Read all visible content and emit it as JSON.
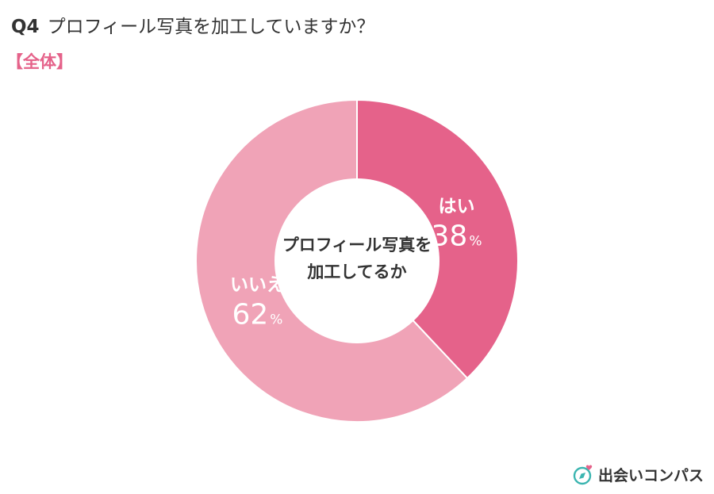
{
  "question": {
    "number": "Q4",
    "text": "プロフィール写真を加工していますか？"
  },
  "subtitle": "【全体】",
  "accent_color": "#e5628a",
  "center_label": [
    "プロフィール写真を",
    "加工してるか"
  ],
  "chart_data": {
    "type": "pie",
    "donut": true,
    "title": "プロフィール写真を加工していますか？",
    "categories": [
      "はい",
      "いいえ"
    ],
    "values": [
      38,
      62
    ],
    "unit": "%",
    "colors": [
      "#e5628a",
      "#f0a3b7"
    ]
  },
  "logo": {
    "text": "出会いコンパス",
    "icon": "compass-heart-icon",
    "icon_color": "#3bb5b0",
    "heart_color": "#e5628a"
  }
}
